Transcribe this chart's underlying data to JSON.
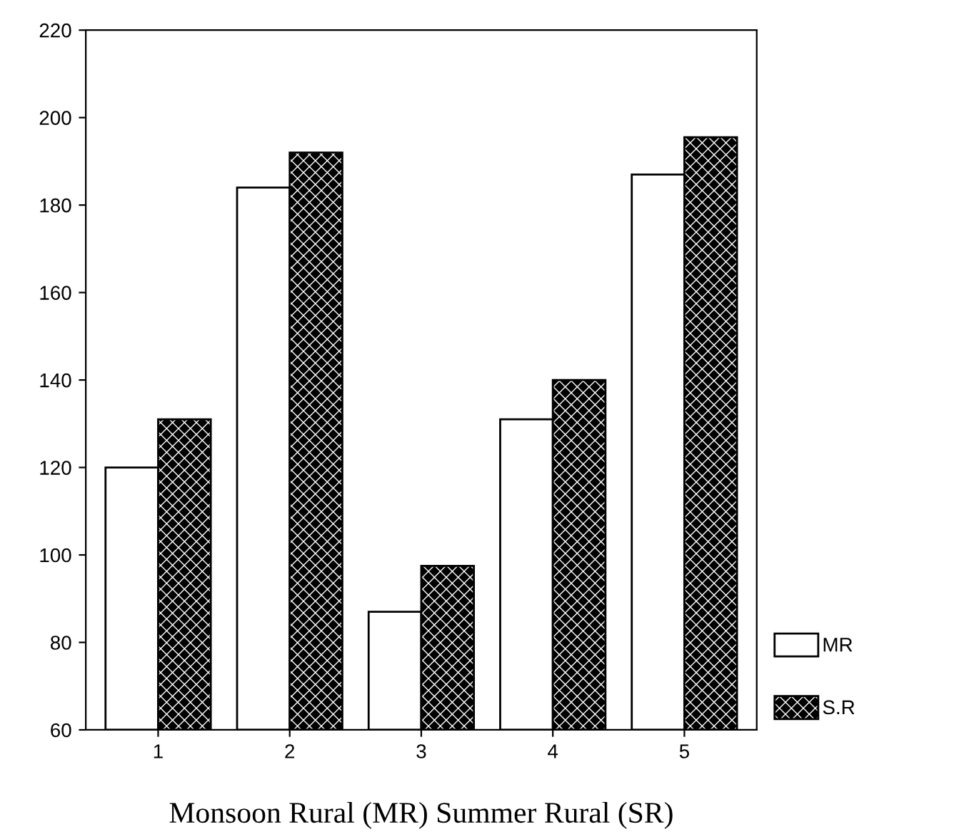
{
  "chart_data": {
    "type": "bar",
    "xlabel": "Monsoon Rural (MR) Summer Rural (SR)",
    "categories": [
      "1",
      "2",
      "3",
      "4",
      "5"
    ],
    "series": [
      {
        "name": "MR",
        "color": "#ffffff",
        "values": [
          120,
          184,
          87,
          131,
          187
        ]
      },
      {
        "name": "S.R",
        "color": "#000000",
        "values": [
          131,
          192,
          97.5,
          140,
          195.5
        ]
      }
    ],
    "ylim": [
      60,
      220
    ],
    "yticks": [
      60,
      80,
      100,
      120,
      140,
      160,
      180,
      200,
      220
    ],
    "grid": false,
    "legend": "bottom right"
  }
}
